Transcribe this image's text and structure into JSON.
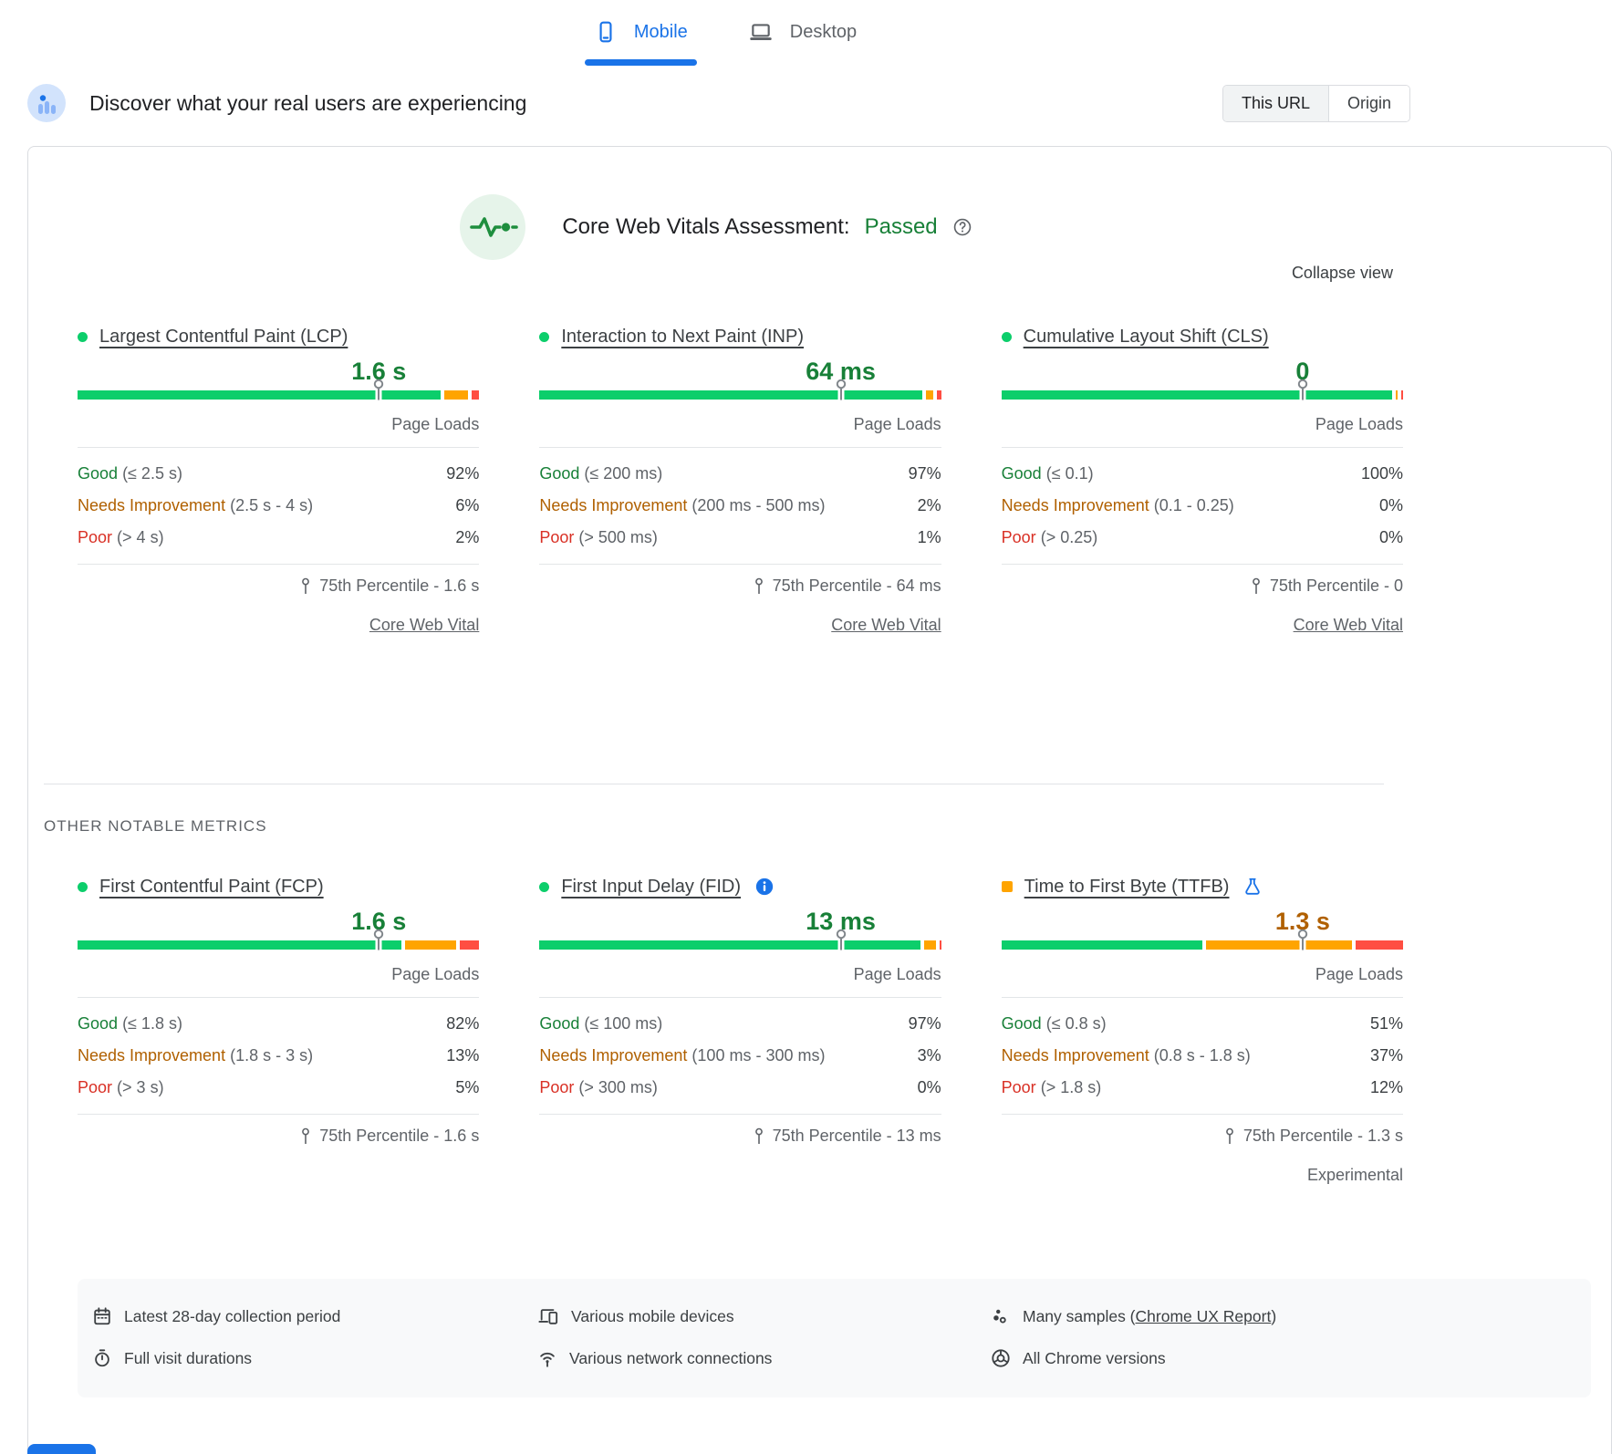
{
  "device_tabs": {
    "mobile": "Mobile",
    "desktop": "Desktop",
    "active": "Mobile"
  },
  "field_header": {
    "title": "Discover what your real users are experiencing",
    "scope_options": [
      "This URL",
      "Origin"
    ],
    "selected_scope": "This URL"
  },
  "assessment": {
    "title": "Core Web Vitals Assessment:",
    "status": "Passed",
    "collapse_label": "Collapse view"
  },
  "section_label": "OTHER NOTABLE METRICS",
  "status_colors": {
    "good": "#0cce6b",
    "needs_improvement": "#ffa400",
    "poor": "#ff4e42"
  },
  "metrics": [
    {
      "id": "lcp",
      "title": "Largest Contentful Paint (LCP)",
      "marker_shape": "circle",
      "value": "1.6 s",
      "value_tone": "good",
      "marker_position_pct": 75,
      "badges": [],
      "page_loads_label": "Page Loads",
      "distribution": [
        {
          "label": "Good",
          "range": "(≤ 2.5 s)",
          "tone": "good",
          "pct": "92%",
          "pct_num": 92
        },
        {
          "label": "Needs Improvement",
          "range": "(2.5 s - 4 s)",
          "tone": "ni",
          "pct": "6%",
          "pct_num": 6
        },
        {
          "label": "Poor",
          "range": "(> 4 s)",
          "tone": "poor",
          "pct": "2%",
          "pct_num": 2
        }
      ],
      "percentile_label": "75th Percentile - 1.6 s",
      "link": "Core Web Vital",
      "experimental": null
    },
    {
      "id": "inp",
      "title": "Interaction to Next Paint (INP)",
      "marker_shape": "circle",
      "value": "64 ms",
      "value_tone": "good",
      "marker_position_pct": 75,
      "badges": [],
      "page_loads_label": "Page Loads",
      "distribution": [
        {
          "label": "Good",
          "range": "(≤ 200 ms)",
          "tone": "good",
          "pct": "97%",
          "pct_num": 97
        },
        {
          "label": "Needs Improvement",
          "range": "(200 ms - 500 ms)",
          "tone": "ni",
          "pct": "2%",
          "pct_num": 2
        },
        {
          "label": "Poor",
          "range": "(> 500 ms)",
          "tone": "poor",
          "pct": "1%",
          "pct_num": 1
        }
      ],
      "percentile_label": "75th Percentile - 64 ms",
      "link": "Core Web Vital",
      "experimental": null
    },
    {
      "id": "cls",
      "title": "Cumulative Layout Shift (CLS)",
      "marker_shape": "circle",
      "value": "0",
      "value_tone": "good",
      "marker_position_pct": 75,
      "badges": [],
      "page_loads_label": "Page Loads",
      "distribution": [
        {
          "label": "Good",
          "range": "(≤ 0.1)",
          "tone": "good",
          "pct": "100%",
          "pct_num": 100
        },
        {
          "label": "Needs Improvement",
          "range": "(0.1 - 0.25)",
          "tone": "ni",
          "pct": "0%",
          "pct_num": 0
        },
        {
          "label": "Poor",
          "range": "(> 0.25)",
          "tone": "poor",
          "pct": "0%",
          "pct_num": 0
        }
      ],
      "percentile_label": "75th Percentile - 0",
      "link": "Core Web Vital",
      "experimental": null
    },
    {
      "id": "fcp",
      "title": "First Contentful Paint (FCP)",
      "marker_shape": "circle",
      "value": "1.6 s",
      "value_tone": "good",
      "marker_position_pct": 75,
      "badges": [],
      "page_loads_label": "Page Loads",
      "distribution": [
        {
          "label": "Good",
          "range": "(≤ 1.8 s)",
          "tone": "good",
          "pct": "82%",
          "pct_num": 82
        },
        {
          "label": "Needs Improvement",
          "range": "(1.8 s - 3 s)",
          "tone": "ni",
          "pct": "13%",
          "pct_num": 13
        },
        {
          "label": "Poor",
          "range": "(> 3 s)",
          "tone": "poor",
          "pct": "5%",
          "pct_num": 5
        }
      ],
      "percentile_label": "75th Percentile - 1.6 s",
      "link": null,
      "experimental": null
    },
    {
      "id": "fid",
      "title": "First Input Delay (FID)",
      "marker_shape": "circle",
      "value": "13 ms",
      "value_tone": "good",
      "marker_position_pct": 75,
      "badges": [
        "info"
      ],
      "page_loads_label": "Page Loads",
      "distribution": [
        {
          "label": "Good",
          "range": "(≤ 100 ms)",
          "tone": "good",
          "pct": "97%",
          "pct_num": 97
        },
        {
          "label": "Needs Improvement",
          "range": "(100 ms - 300 ms)",
          "tone": "ni",
          "pct": "3%",
          "pct_num": 3
        },
        {
          "label": "Poor",
          "range": "(> 300 ms)",
          "tone": "poor",
          "pct": "0%",
          "pct_num": 0
        }
      ],
      "percentile_label": "75th Percentile - 13 ms",
      "link": null,
      "experimental": null
    },
    {
      "id": "ttfb",
      "title": "Time to First Byte (TTFB)",
      "marker_shape": "square",
      "value": "1.3 s",
      "value_tone": "ni",
      "marker_position_pct": 75,
      "badges": [
        "flask"
      ],
      "page_loads_label": "Page Loads",
      "distribution": [
        {
          "label": "Good",
          "range": "(≤ 0.8 s)",
          "tone": "good",
          "pct": "51%",
          "pct_num": 51
        },
        {
          "label": "Needs Improvement",
          "range": "(0.8 s - 1.8 s)",
          "tone": "ni",
          "pct": "37%",
          "pct_num": 37
        },
        {
          "label": "Poor",
          "range": "(> 1.8 s)",
          "tone": "poor",
          "pct": "12%",
          "pct_num": 12
        }
      ],
      "percentile_label": "75th Percentile - 1.3 s",
      "link": null,
      "experimental": "Experimental"
    }
  ],
  "footer": {
    "columns": [
      [
        {
          "icon": "calendar-icon",
          "text": "Latest 28-day collection period"
        },
        {
          "icon": "stopwatch-icon",
          "text": "Full visit durations"
        }
      ],
      [
        {
          "icon": "devices-icon",
          "text": "Various mobile devices"
        },
        {
          "icon": "network-icon",
          "text": "Various network connections"
        }
      ],
      [
        {
          "icon": "samples-icon",
          "text": "Many samples (",
          "link": "Chrome UX Report",
          "suffix": ")"
        },
        {
          "icon": "chrome-icon",
          "text": "All Chrome versions"
        }
      ]
    ]
  }
}
